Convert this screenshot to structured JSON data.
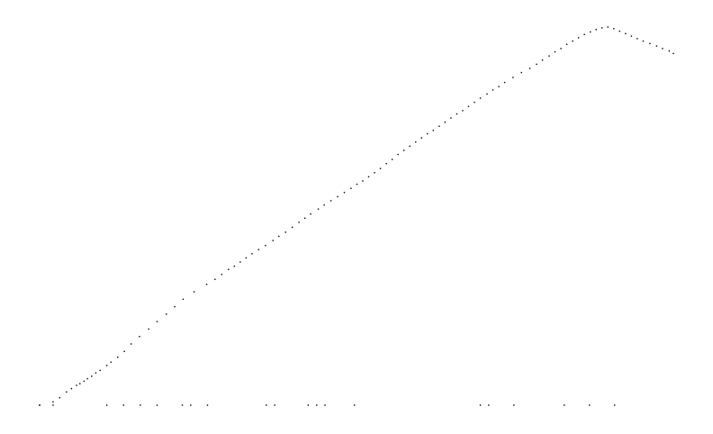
{
  "chart_data": {
    "type": "scatter",
    "title": "",
    "xlabel": "",
    "ylabel": "",
    "xlim": [
      0,
      1
    ],
    "ylim": [
      0,
      1
    ],
    "grid": false,
    "legend": "none",
    "series": [
      {
        "values_x": [
          0.0,
          0.0212,
          0.0318,
          0.0424,
          0.0503,
          0.0583,
          0.0636,
          0.0702,
          0.0755,
          0.0821,
          0.0887,
          0.0954,
          0.106,
          0.1126,
          0.1232,
          0.1338,
          0.1444,
          0.1576,
          0.1722,
          0.1854,
          0.2,
          0.2132,
          0.2265,
          0.2437,
          0.2636,
          0.2768,
          0.2874,
          0.298,
          0.3073,
          0.3166,
          0.3258,
          0.3351,
          0.3457,
          0.3563,
          0.3682,
          0.3775,
          0.3881,
          0.3987,
          0.4093,
          0.4185,
          0.4278,
          0.4397,
          0.449,
          0.4596,
          0.4702,
          0.4808,
          0.4914,
          0.5007,
          0.5099,
          0.5192,
          0.5285,
          0.5377,
          0.547,
          0.5563,
          0.5656,
          0.5748,
          0.5841,
          0.5934,
          0.6026,
          0.6119,
          0.6212,
          0.6305,
          0.6397,
          0.649,
          0.6583,
          0.6675,
          0.6768,
          0.6861,
          0.6954,
          0.706,
          0.7152,
          0.7245,
          0.7338,
          0.747,
          0.7603,
          0.7735,
          0.7841,
          0.7934,
          0.804,
          0.8132,
          0.8225,
          0.8318,
          0.8411,
          0.8503,
          0.8596,
          0.8689,
          0.8781,
          0.8874,
          0.8967,
          0.906,
          0.9152,
          0.9245,
          0.9338,
          0.943,
          0.9523,
          0.9629,
          0.9735,
          0.9828,
          0.9934,
          1.0
        ],
        "values_y": [
          0.0,
          0.0088,
          0.0197,
          0.035,
          0.0438,
          0.0525,
          0.0569,
          0.0634,
          0.07,
          0.0766,
          0.0853,
          0.0919,
          0.105,
          0.1138,
          0.1269,
          0.1422,
          0.1619,
          0.1816,
          0.2013,
          0.221,
          0.2407,
          0.2604,
          0.2801,
          0.2998,
          0.3195,
          0.3326,
          0.3457,
          0.3589,
          0.3676,
          0.3786,
          0.3895,
          0.4004,
          0.4114,
          0.4223,
          0.4354,
          0.4464,
          0.4573,
          0.4705,
          0.4836,
          0.4945,
          0.5055,
          0.5186,
          0.5295,
          0.5405,
          0.5514,
          0.5624,
          0.5733,
          0.5842,
          0.593,
          0.6039,
          0.6149,
          0.6258,
          0.6389,
          0.6499,
          0.663,
          0.674,
          0.6849,
          0.6958,
          0.7068,
          0.7177,
          0.7265,
          0.7374,
          0.7484,
          0.7593,
          0.7702,
          0.779,
          0.7899,
          0.8009,
          0.8118,
          0.8228,
          0.8337,
          0.8425,
          0.8534,
          0.8665,
          0.8796,
          0.8906,
          0.9015,
          0.9125,
          0.9234,
          0.9343,
          0.9431,
          0.954,
          0.9628,
          0.9716,
          0.9803,
          0.9869,
          0.9934,
          0.9978,
          1.0,
          0.9956,
          0.9891,
          0.9825,
          0.9759,
          0.9694,
          0.9628,
          0.9562,
          0.9497,
          0.9431,
          0.9365,
          0.93
        ]
      },
      {
        "values_x": [
          0.0,
          0.0212,
          0.106,
          0.1325,
          0.1589,
          0.1854,
          0.2252,
          0.2384,
          0.2649,
          0.3576,
          0.3709,
          0.4238,
          0.4371,
          0.4503,
          0.4967,
          0.6954,
          0.7086,
          0.7483,
          0.8278,
          0.8675,
          0.9072
        ],
        "values_y": [
          0,
          0,
          0,
          0,
          0,
          0,
          0,
          0,
          0,
          0,
          0,
          0,
          0,
          0,
          0,
          0,
          0,
          0,
          0,
          0,
          0
        ]
      }
    ]
  },
  "colors": {
    "background": "#ffffff",
    "dot": "#000000"
  }
}
